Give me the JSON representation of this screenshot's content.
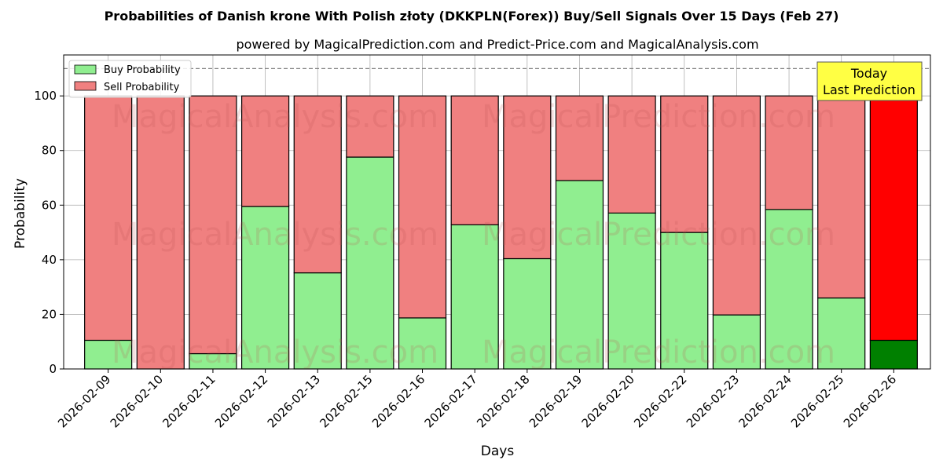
{
  "chart_data": {
    "type": "bar",
    "stacked": true,
    "title": "Probabilities of Danish krone With Polish złoty (DKKPLN(Forex)) Buy/Sell Signals Over 15 Days (Feb 27)",
    "subtitle": "powered by MagicalPrediction.com and Predict-Price.com and MagicalAnalysis.com",
    "xlabel": "Days",
    "ylabel": "Probability",
    "ylim": [
      0,
      115
    ],
    "yticks": [
      0,
      20,
      40,
      60,
      80,
      100
    ],
    "grid": true,
    "reference_line": 110,
    "legend_position": "top-left",
    "categories": [
      "2026-02-09",
      "2026-02-10",
      "2026-02-11",
      "2026-02-12",
      "2026-02-13",
      "2026-02-15",
      "2026-02-16",
      "2026-02-17",
      "2026-02-18",
      "2026-02-19",
      "2026-02-20",
      "2026-02-22",
      "2026-02-23",
      "2026-02-24",
      "2026-02-25",
      "2026-02-26"
    ],
    "series": [
      {
        "name": "Buy Probability",
        "color": "#90ee90",
        "values": [
          10.5,
          0,
          5.6,
          59.5,
          35.2,
          77.6,
          18.7,
          52.8,
          40.4,
          69,
          57.1,
          50,
          19.8,
          58.4,
          26,
          10.5
        ]
      },
      {
        "name": "Sell Probability",
        "color": "#f08080",
        "values": [
          89.5,
          100,
          94.4,
          40.5,
          64.8,
          22.4,
          81.3,
          47.2,
          59.6,
          31,
          42.9,
          50,
          80.2,
          41.6,
          74,
          89.5
        ]
      }
    ],
    "highlight": {
      "index": 15,
      "buy_color": "#008000",
      "sell_color": "#ff0000"
    },
    "annotation": {
      "line1": "Today",
      "line2": "Last Prediction",
      "background": "#ffff44"
    },
    "watermarks": [
      "MagicalAnalysis.com",
      "MagicalPrediction.com"
    ]
  }
}
